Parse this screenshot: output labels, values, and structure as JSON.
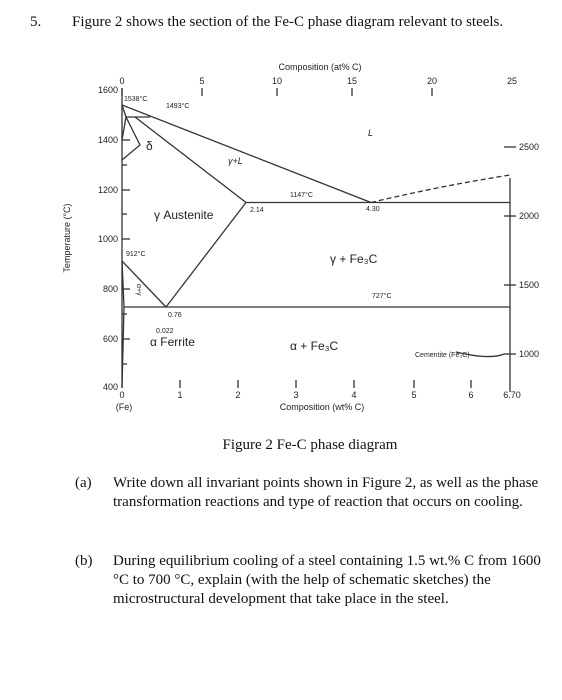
{
  "question": {
    "number": "5.",
    "text": "Figure 2 shows the section of the Fe-C phase diagram relevant to steels."
  },
  "figure": {
    "top_axis_title": "Composition (at% C)",
    "top_ticks": [
      "0",
      "5",
      "10",
      "15",
      "20",
      "25"
    ],
    "bottom_axis_title": "Composition (wt% C)",
    "bottom_ticks": [
      "0",
      "1",
      "2",
      "3",
      "4",
      "5",
      "6",
      "6.70"
    ],
    "bottom_origin_note": "(Fe)",
    "left_axis_title": "Temperature (°C)",
    "left_ticks": [
      "1600",
      "1400",
      "1200",
      "1000",
      "800",
      "600",
      "400"
    ],
    "right_ticks": [
      "2500",
      "2000",
      "1500",
      "1000"
    ],
    "labels": [
      "1538°C",
      "1493°C",
      "δ",
      "γ+L",
      "L",
      "1147°C",
      "2.14",
      "4.30",
      "γ Austenite",
      "912°C",
      "γ + Fe₃C",
      "727°C",
      "α+γ",
      "0.76",
      "0.022",
      "α Ferrite",
      "α + Fe₃C",
      "Cementite (Fe₃C)"
    ]
  },
  "caption": "Figure 2 Fe-C phase diagram",
  "parts": [
    {
      "label": "(a)",
      "text": "Write down all invariant points shown in Figure 2, as well as the phase transformation reactions and type of reaction that occurs on cooling."
    },
    {
      "label": "(b)",
      "text": "During equilibrium cooling of a steel containing 1.5 wt.% C from 1600 °C to 700 °C, explain (with the help of schematic sketches) the microstructural development that take place in the steel."
    }
  ]
}
